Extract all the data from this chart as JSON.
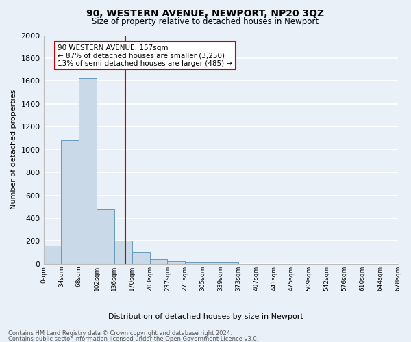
{
  "title": "90, WESTERN AVENUE, NEWPORT, NP20 3QZ",
  "subtitle": "Size of property relative to detached houses in Newport",
  "xlabel": "Distribution of detached houses by size in Newport",
  "ylabel": "Number of detached properties",
  "bin_labels": [
    "0sqm",
    "34sqm",
    "68sqm",
    "102sqm",
    "136sqm",
    "170sqm",
    "203sqm",
    "237sqm",
    "271sqm",
    "305sqm",
    "339sqm",
    "373sqm",
    "407sqm",
    "441sqm",
    "475sqm",
    "509sqm",
    "542sqm",
    "576sqm",
    "610sqm",
    "644sqm",
    "678sqm"
  ],
  "bar_values": [
    160,
    1080,
    1625,
    480,
    200,
    100,
    40,
    25,
    20,
    15,
    15,
    0,
    0,
    0,
    0,
    0,
    0,
    0,
    0,
    0
  ],
  "bar_color": "#c9d9e8",
  "bar_edge_color": "#6699bb",
  "property_line_color": "#cc0000",
  "annotation_text": "90 WESTERN AVENUE: 157sqm\n← 87% of detached houses are smaller (3,250)\n13% of semi-detached houses are larger (485) →",
  "annotation_box_color": "#ffffff",
  "annotation_box_edge_color": "#cc0000",
  "footer_line1": "Contains HM Land Registry data © Crown copyright and database right 2024.",
  "footer_line2": "Contains public sector information licensed under the Open Government Licence v3.0.",
  "ylim": [
    0,
    2000
  ],
  "yticks": [
    0,
    200,
    400,
    600,
    800,
    1000,
    1200,
    1400,
    1600,
    1800,
    2000
  ],
  "background_color": "#eaf0f8",
  "grid_color": "#ffffff",
  "bin_edges": [
    0,
    34,
    68,
    102,
    136,
    170,
    203,
    237,
    271,
    305,
    339,
    373,
    407,
    441,
    475,
    509,
    542,
    576,
    610,
    644,
    678
  ],
  "property_size": 157
}
